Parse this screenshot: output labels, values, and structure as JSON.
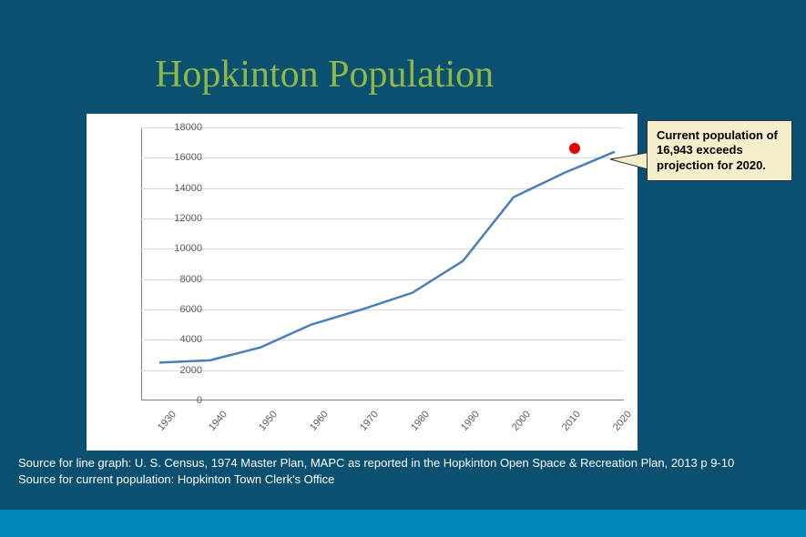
{
  "title": "Hopkinton Population",
  "chart": {
    "type": "line",
    "background_color": "#ffffff",
    "grid_color": "#d9d9d9",
    "axis_color": "#808080",
    "tick_label_color": "#595959",
    "tick_fontsize": 11,
    "line_color": "#4a7ebb",
    "line_width": 2.5,
    "ylim": [
      0,
      18000
    ],
    "ytick_step": 2000,
    "yticks": [
      0,
      2000,
      4000,
      6000,
      8000,
      10000,
      12000,
      14000,
      16000,
      18000
    ],
    "x_categories": [
      "1930",
      "1940",
      "1950",
      "1960",
      "1970",
      "1980",
      "1990",
      "2000",
      "2010",
      "2020"
    ],
    "y_values": [
      2500,
      2650,
      3500,
      5000,
      6000,
      7100,
      9200,
      13400,
      15000,
      16400
    ],
    "highlight_point": {
      "x_index": 8.2,
      "y_value": 16600,
      "color": "#e60000",
      "radius": 6
    }
  },
  "callout": {
    "text": "Current population of 16,943 exceeds projection for 2020.",
    "background_color": "#f5eecb",
    "border_color": "#333333",
    "font_weight": "bold",
    "fontsize": 13
  },
  "sources": {
    "line1": "Source for line graph:  U. S. Census, 1974 Master Plan, MAPC as reported in the Hopkinton Open Space & Recreation Plan, 2013 p 9-10",
    "line2": "Source for current population: Hopkinton Town Clerk's Office"
  },
  "colors": {
    "page_bg": "#0b4f71",
    "bottom_band": "#0089b8",
    "title_color": "#8fb946"
  }
}
